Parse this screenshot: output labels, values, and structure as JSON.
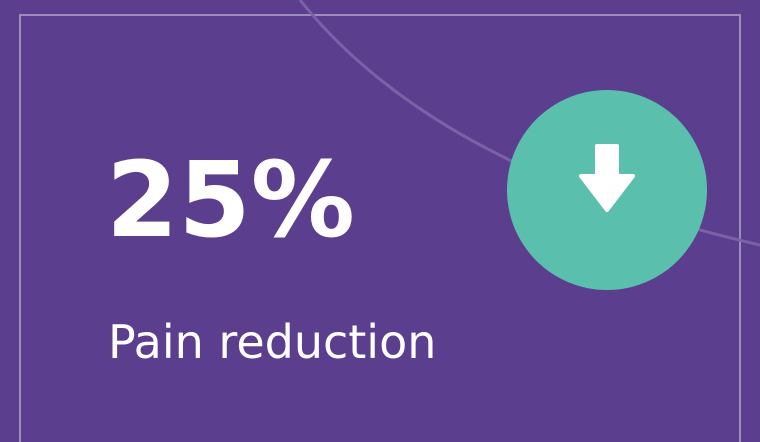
{
  "stat": {
    "value": "25%",
    "label": "Pain reduction"
  }
}
